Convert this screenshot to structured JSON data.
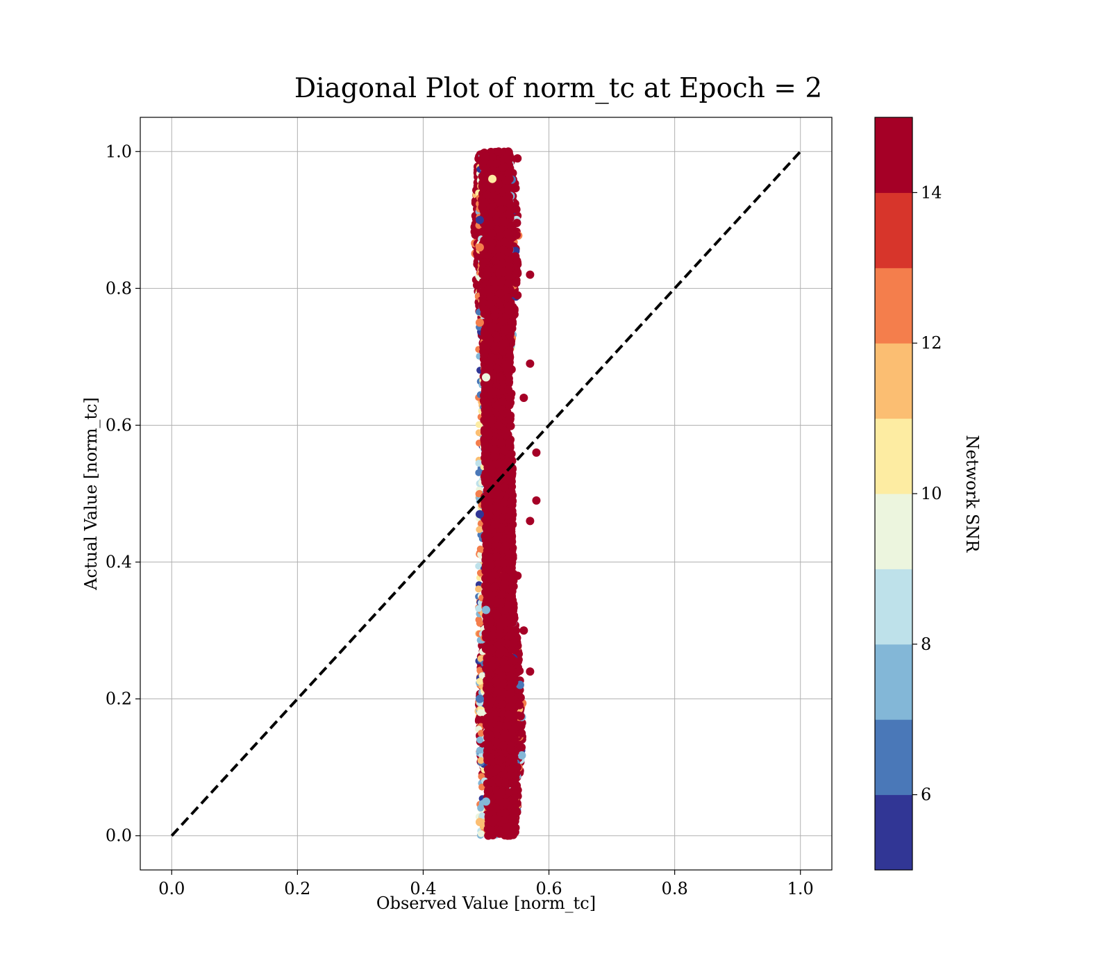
{
  "chart_data": {
    "type": "scatter",
    "title": "Diagonal Plot of norm_tc at Epoch = 2",
    "xlabel": "Observed Value [norm_tc]",
    "ylabel": "Actual Value [norm_tc]",
    "xlim": [
      -0.05,
      1.05
    ],
    "ylim": [
      -0.05,
      1.05
    ],
    "xticks": [
      "0.0",
      "0.2",
      "0.4",
      "0.6",
      "0.8",
      "1.0"
    ],
    "yticks": [
      "0.0",
      "0.2",
      "0.4",
      "0.6",
      "0.8",
      "1.0"
    ],
    "grid": true,
    "reference_line": {
      "style": "dashed",
      "color": "#000000",
      "from": [
        0.0,
        0.0
      ],
      "to": [
        1.0,
        1.0
      ]
    },
    "points": {
      "description_x_center_at_y0": 0.525,
      "description_x_center_at_y1": 0.515,
      "x_range": [
        0.49,
        0.58
      ],
      "y_range": [
        0.0,
        1.0
      ],
      "dominant_color_value": 15,
      "samples": [
        [
          0.49,
          0.02,
          12
        ],
        [
          0.5,
          0.05,
          8
        ],
        [
          0.52,
          0.08,
          15
        ],
        [
          0.55,
          0.1,
          15
        ],
        [
          0.53,
          0.15,
          15
        ],
        [
          0.49,
          0.2,
          7
        ],
        [
          0.57,
          0.24,
          15
        ],
        [
          0.56,
          0.3,
          15
        ],
        [
          0.5,
          0.33,
          8
        ],
        [
          0.55,
          0.38,
          15
        ],
        [
          0.53,
          0.42,
          15
        ],
        [
          0.57,
          0.46,
          15
        ],
        [
          0.49,
          0.47,
          6
        ],
        [
          0.58,
          0.49,
          15
        ],
        [
          0.54,
          0.52,
          15
        ],
        [
          0.58,
          0.56,
          15
        ],
        [
          0.52,
          0.6,
          15
        ],
        [
          0.56,
          0.64,
          15
        ],
        [
          0.5,
          0.67,
          10
        ],
        [
          0.57,
          0.69,
          15
        ],
        [
          0.53,
          0.72,
          15
        ],
        [
          0.49,
          0.75,
          13
        ],
        [
          0.55,
          0.79,
          15
        ],
        [
          0.57,
          0.82,
          15
        ],
        [
          0.49,
          0.86,
          13
        ],
        [
          0.54,
          0.89,
          15
        ],
        [
          0.49,
          0.9,
          6
        ],
        [
          0.53,
          0.93,
          15
        ],
        [
          0.51,
          0.96,
          11
        ],
        [
          0.55,
          0.99,
          15
        ],
        [
          0.52,
          1.0,
          15
        ]
      ]
    },
    "colorbar": {
      "label": "Network SNR",
      "range": [
        5,
        15
      ],
      "ticks": [
        "6",
        "8",
        "10",
        "12",
        "14"
      ],
      "bins": [
        {
          "from": 5,
          "to": 6,
          "color": "#313695"
        },
        {
          "from": 6,
          "to": 7,
          "color": "#4a78b8"
        },
        {
          "from": 7,
          "to": 8,
          "color": "#83b7d7"
        },
        {
          "from": 8,
          "to": 9,
          "color": "#bee1ea"
        },
        {
          "from": 9,
          "to": 10,
          "color": "#ecf5de"
        },
        {
          "from": 10,
          "to": 11,
          "color": "#fdeca2"
        },
        {
          "from": 11,
          "to": 12,
          "color": "#fbbe72"
        },
        {
          "from": 12,
          "to": 13,
          "color": "#f47e4c"
        },
        {
          "from": 13,
          "to": 14,
          "color": "#d7352b"
        },
        {
          "from": 14,
          "to": 15,
          "color": "#a50026"
        }
      ]
    }
  }
}
